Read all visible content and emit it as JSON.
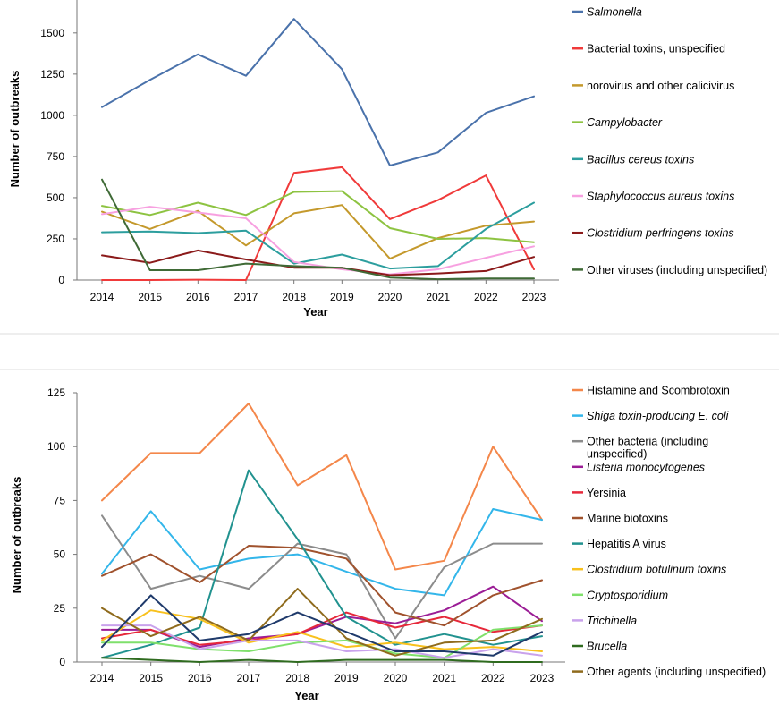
{
  "chart_data": [
    {
      "type": "line",
      "xlabel": "Year",
      "ylabel": "Number of outbreaks",
      "x": [
        2014,
        2015,
        2016,
        2017,
        2018,
        2019,
        2020,
        2021,
        2022,
        2023
      ],
      "ylim": [
        0,
        1700
      ],
      "yticks": [
        0,
        250,
        500,
        750,
        1000,
        1250,
        1500
      ],
      "series": [
        {
          "name": "Salmonella",
          "italic": true,
          "color": "#4a72ab",
          "values": [
            1050,
            1215,
            1370,
            1240,
            1585,
            1280,
            695,
            775,
            1015,
            1115
          ]
        },
        {
          "name": "Bacterial toxins, unspecified",
          "italic": false,
          "color": "#f03a3a",
          "values": [
            0,
            0,
            2,
            0,
            650,
            685,
            370,
            485,
            635,
            65
          ]
        },
        {
          "name": "norovirus and other calicivirus",
          "italic": false,
          "color": "#c4992c",
          "values": [
            415,
            310,
            420,
            210,
            405,
            455,
            130,
            255,
            330,
            355
          ]
        },
        {
          "name": "Campylobacter",
          "italic": true,
          "color": "#8dc341",
          "values": [
            450,
            395,
            470,
            395,
            535,
            540,
            315,
            250,
            255,
            230
          ]
        },
        {
          "name": "Bacillus cereus toxins",
          "italic": true,
          "color": "#2c9e9e",
          "values": [
            290,
            295,
            285,
            300,
            100,
            155,
            70,
            85,
            310,
            470
          ]
        },
        {
          "name": "Staphylococcus aureus toxins",
          "italic": true,
          "color": "#f7a0e0",
          "values": [
            400,
            445,
            410,
            375,
            110,
            65,
            35,
            65,
            135,
            205
          ]
        },
        {
          "name": "Clostridium perfringens toxins",
          "italic": true,
          "color": "#8b1a1a",
          "values": [
            150,
            105,
            180,
            125,
            75,
            75,
            30,
            40,
            55,
            140
          ]
        },
        {
          "name": "Other viruses (including unspecified)",
          "italic": false,
          "color": "#3f6a36",
          "values": [
            610,
            60,
            60,
            100,
            85,
            75,
            15,
            5,
            10,
            10
          ]
        }
      ]
    },
    {
      "type": "line",
      "xlabel": "Year",
      "ylabel": "Number of outbreaks",
      "x": [
        2014,
        2015,
        2016,
        2017,
        2018,
        2019,
        2020,
        2021,
        2022,
        2023
      ],
      "ylim": [
        0,
        125
      ],
      "yticks": [
        0,
        25,
        50,
        75,
        100,
        125
      ],
      "series": [
        {
          "name": "Histamine and Scombrotoxin",
          "italic": false,
          "color": "#f4874a",
          "values": [
            75,
            97,
            97,
            120,
            82,
            96,
            43,
            47,
            100,
            66
          ]
        },
        {
          "name": "Shiga toxin-producing E. coli",
          "italic": true,
          "color": "#33b6ea",
          "values": [
            41,
            70,
            43,
            48,
            50,
            42,
            34,
            31,
            71,
            66
          ]
        },
        {
          "name": "Other bacteria (including unspecified)",
          "name_lines": [
            "Other bacteria (including",
            "unspecified)"
          ],
          "italic": false,
          "color": "#8c8c8c",
          "values": [
            68,
            34,
            40,
            34,
            55,
            50,
            11,
            44,
            55,
            55
          ]
        },
        {
          "name": "Listeria monocytogenes",
          "italic": true,
          "color": "#9b1d96",
          "values": [
            15,
            15,
            7,
            11,
            13,
            21,
            18,
            24,
            35,
            19
          ]
        },
        {
          "name": "Yersinia",
          "italic": false,
          "color": "#e6283a",
          "values": [
            11,
            15,
            8,
            10,
            13,
            23,
            16,
            21,
            14,
            17
          ]
        },
        {
          "name": "Marine biotoxins",
          "italic": false,
          "color": "#a0522d",
          "values": [
            40,
            50,
            37,
            54,
            53,
            48,
            23,
            17,
            31,
            38
          ]
        },
        {
          "name": "Hepatitis A virus",
          "italic": false,
          "color": "#21928f",
          "values": [
            2,
            8,
            16,
            89,
            57,
            21,
            8,
            13,
            8,
            12
          ]
        },
        {
          "name": "Clostridium botulinum toxins",
          "italic": true,
          "color": "#f8c11d",
          "values": [
            10,
            24,
            20,
            9,
            14,
            7,
            9,
            6,
            7,
            5
          ]
        },
        {
          "name": "Cryptosporidium",
          "italic": true,
          "color": "#7fe06b",
          "values": [
            9,
            9,
            6,
            5,
            9,
            10,
            4,
            2,
            15,
            17
          ]
        },
        {
          "name": "Trichinella",
          "italic": true,
          "color": "#c9a2ec",
          "values": [
            17,
            17,
            6,
            10,
            10,
            5,
            6,
            2,
            6,
            3
          ]
        },
        {
          "name": "Brucella",
          "italic": true,
          "color": "#2f6b1f",
          "values": [
            2,
            1,
            0,
            1,
            0,
            1,
            1,
            1,
            0,
            0
          ]
        },
        {
          "name": "Other agents (including unspecified)",
          "italic": false,
          "color": "#8f6b1d",
          "values": [
            25,
            12,
            21,
            10,
            34,
            11,
            3,
            9,
            10,
            20
          ]
        },
        {
          "name": "",
          "italic": false,
          "color": "#1f3a6b",
          "legend": false,
          "values": [
            7,
            31,
            10,
            13,
            23,
            14,
            5,
            5,
            3,
            14
          ]
        }
      ]
    }
  ]
}
